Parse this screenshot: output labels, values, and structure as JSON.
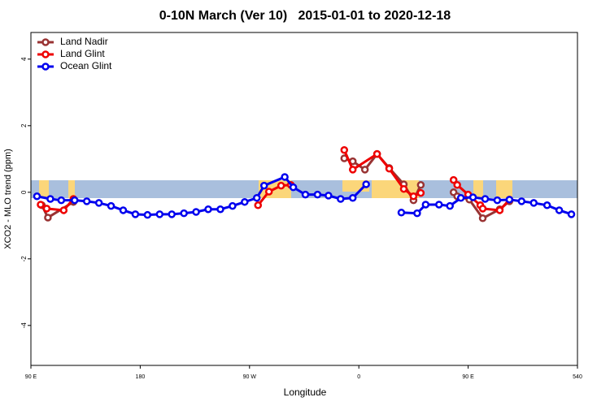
{
  "chart_data": {
    "type": "line",
    "title": "0-10N March (Ver 10)   2015-01-01 to 2020-12-18",
    "xlabel": "Longitude",
    "ylabel": "XCO2 - MLO trend (ppm)",
    "xlim": [
      90,
      540
    ],
    "xticks": [
      {
        "value": 90,
        "label": "90 E"
      },
      180,
      {
        "value": 270,
        "label": "90 W"
      },
      {
        "value": 360,
        "label": "0"
      },
      {
        "value": 450,
        "label": "90 E"
      },
      540
    ],
    "ylim": [
      -5.2,
      4.8
    ],
    "yticks": [
      -4,
      -2,
      0,
      2,
      4
    ],
    "legend": "top-left",
    "series": [
      {
        "name": "Land Nadir",
        "color": "#993333",
        "x": [
          99,
          104,
          125,
          null,
          348,
          355,
          365,
          375,
          385,
          397,
          405,
          411,
          null,
          438,
          441,
          451,
          462,
          476,
          484
        ],
        "values": [
          -0.39,
          -0.76,
          -0.29,
          null,
          1.02,
          0.93,
          0.68,
          1.15,
          0.73,
          0.24,
          -0.24,
          0.22,
          null,
          0,
          -0.12,
          -0.22,
          -0.78,
          -0.51,
          -0.27
        ]
      },
      {
        "name": "Land Glint",
        "color": "#ee0000",
        "x": [
          98,
          103,
          117,
          125,
          null,
          277,
          286,
          296,
          304,
          null,
          348,
          355,
          375,
          385,
          397,
          405,
          411,
          null,
          438,
          441,
          450,
          460,
          462,
          476,
          484
        ],
        "values": [
          -0.37,
          -0.49,
          -0.54,
          -0.2,
          null,
          -0.39,
          0.02,
          0.2,
          0.22,
          null,
          1.27,
          0.68,
          1.15,
          0.71,
          0.1,
          -0.12,
          -0.02,
          null,
          0.37,
          0.22,
          -0.07,
          -0.39,
          -0.49,
          -0.54,
          -0.22
        ]
      },
      {
        "name": "Ocean Glint",
        "color": "#0000ee",
        "x": [
          95,
          106,
          115,
          126,
          136,
          146,
          156,
          166,
          176,
          186,
          196,
          206,
          216,
          226,
          236,
          246,
          256,
          266,
          276,
          282,
          299,
          306,
          316,
          326,
          335,
          345,
          355,
          366,
          null,
          395,
          408,
          415,
          426,
          435,
          444,
          454,
          464,
          474,
          484,
          494,
          504,
          515,
          525,
          535
        ],
        "values": [
          -0.12,
          -0.2,
          -0.24,
          -0.24,
          -0.27,
          -0.32,
          -0.41,
          -0.54,
          -0.66,
          -0.68,
          -0.66,
          -0.66,
          -0.63,
          -0.59,
          -0.51,
          -0.51,
          -0.41,
          -0.29,
          -0.17,
          0.2,
          0.46,
          0.15,
          -0.07,
          -0.07,
          -0.1,
          -0.2,
          -0.17,
          0.24,
          null,
          -0.61,
          -0.63,
          -0.37,
          -0.37,
          -0.41,
          -0.17,
          -0.15,
          -0.2,
          -0.24,
          -0.22,
          -0.27,
          -0.32,
          -0.39,
          -0.54,
          -0.66
        ]
      }
    ]
  }
}
